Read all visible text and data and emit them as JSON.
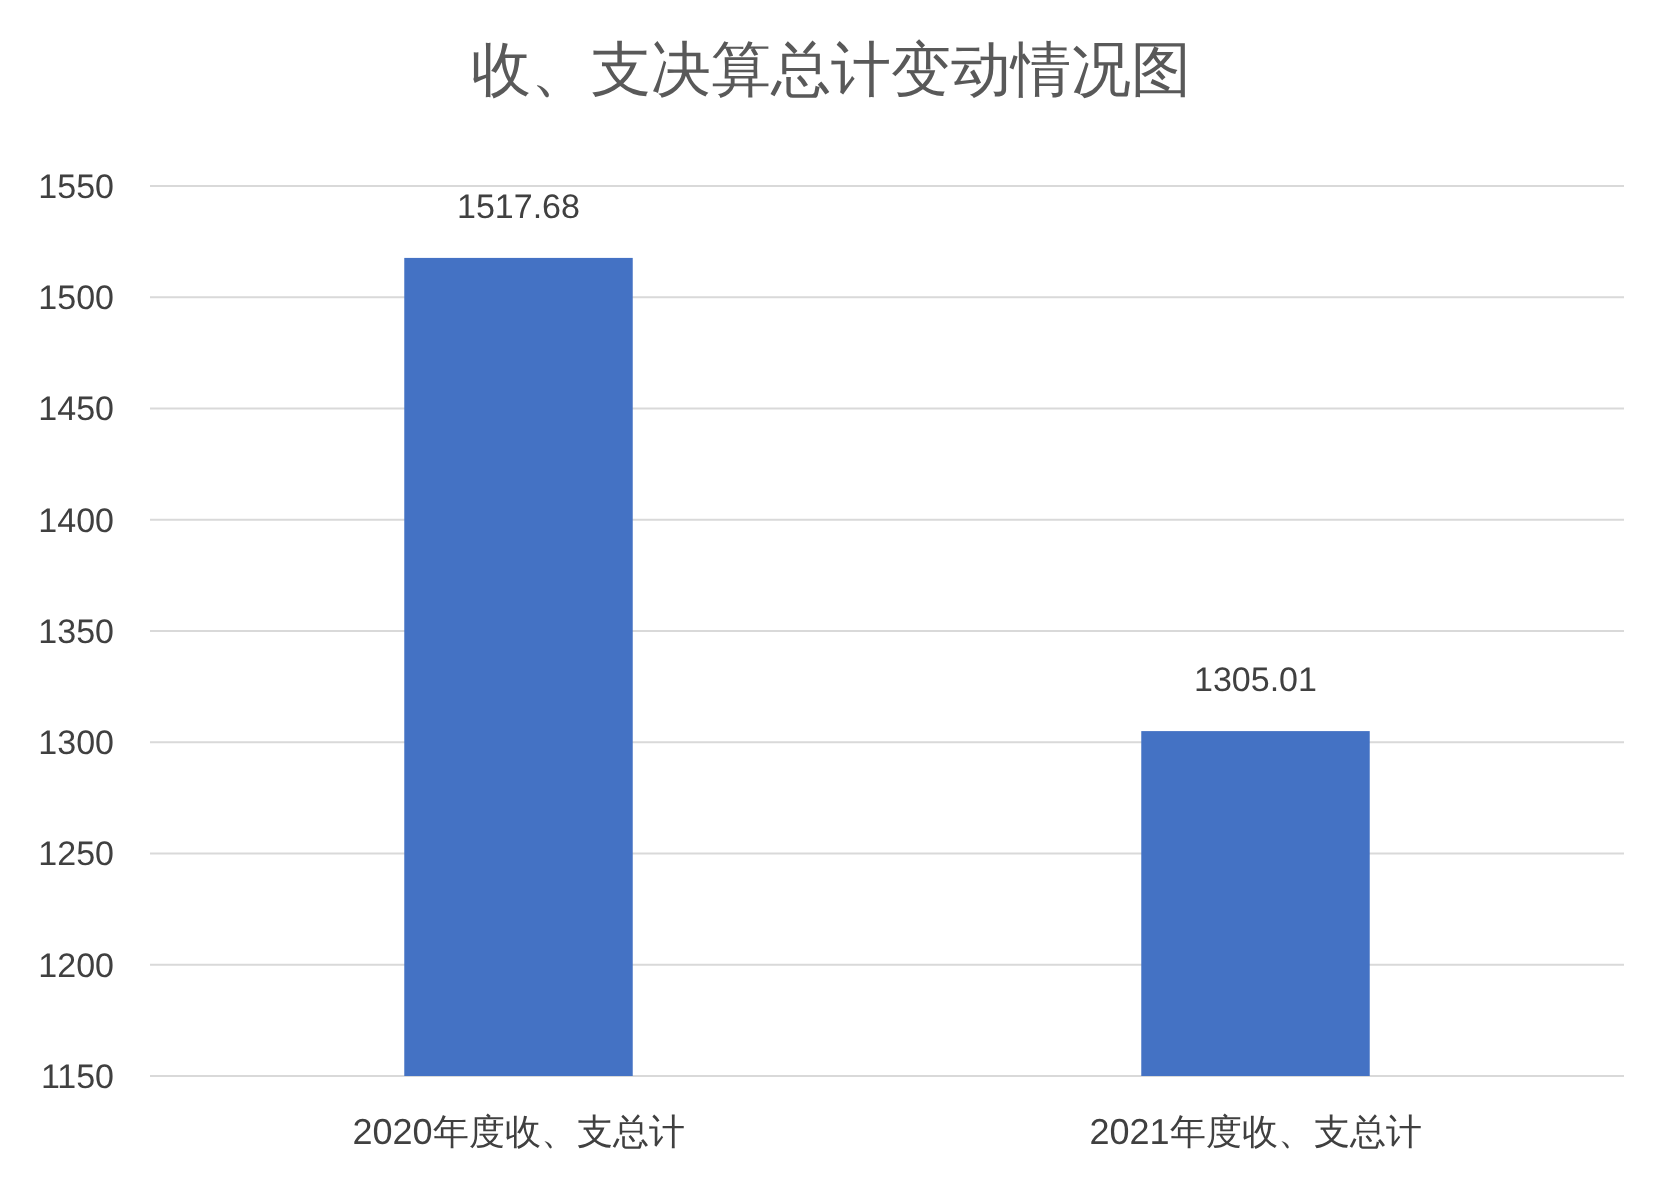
{
  "chart_data": {
    "type": "bar",
    "title": "收、支决算总计变动情况图",
    "categories": [
      "2020年度收、支总计",
      "2021年度收、支总计"
    ],
    "values": [
      1517.68,
      1305.01
    ],
    "color": "#4472c4",
    "ylim": [
      1150,
      1550
    ],
    "yticks": [
      1150,
      1200,
      1250,
      1300,
      1350,
      1400,
      1450,
      1500,
      1550
    ],
    "grid": "y",
    "data_labels": true
  }
}
